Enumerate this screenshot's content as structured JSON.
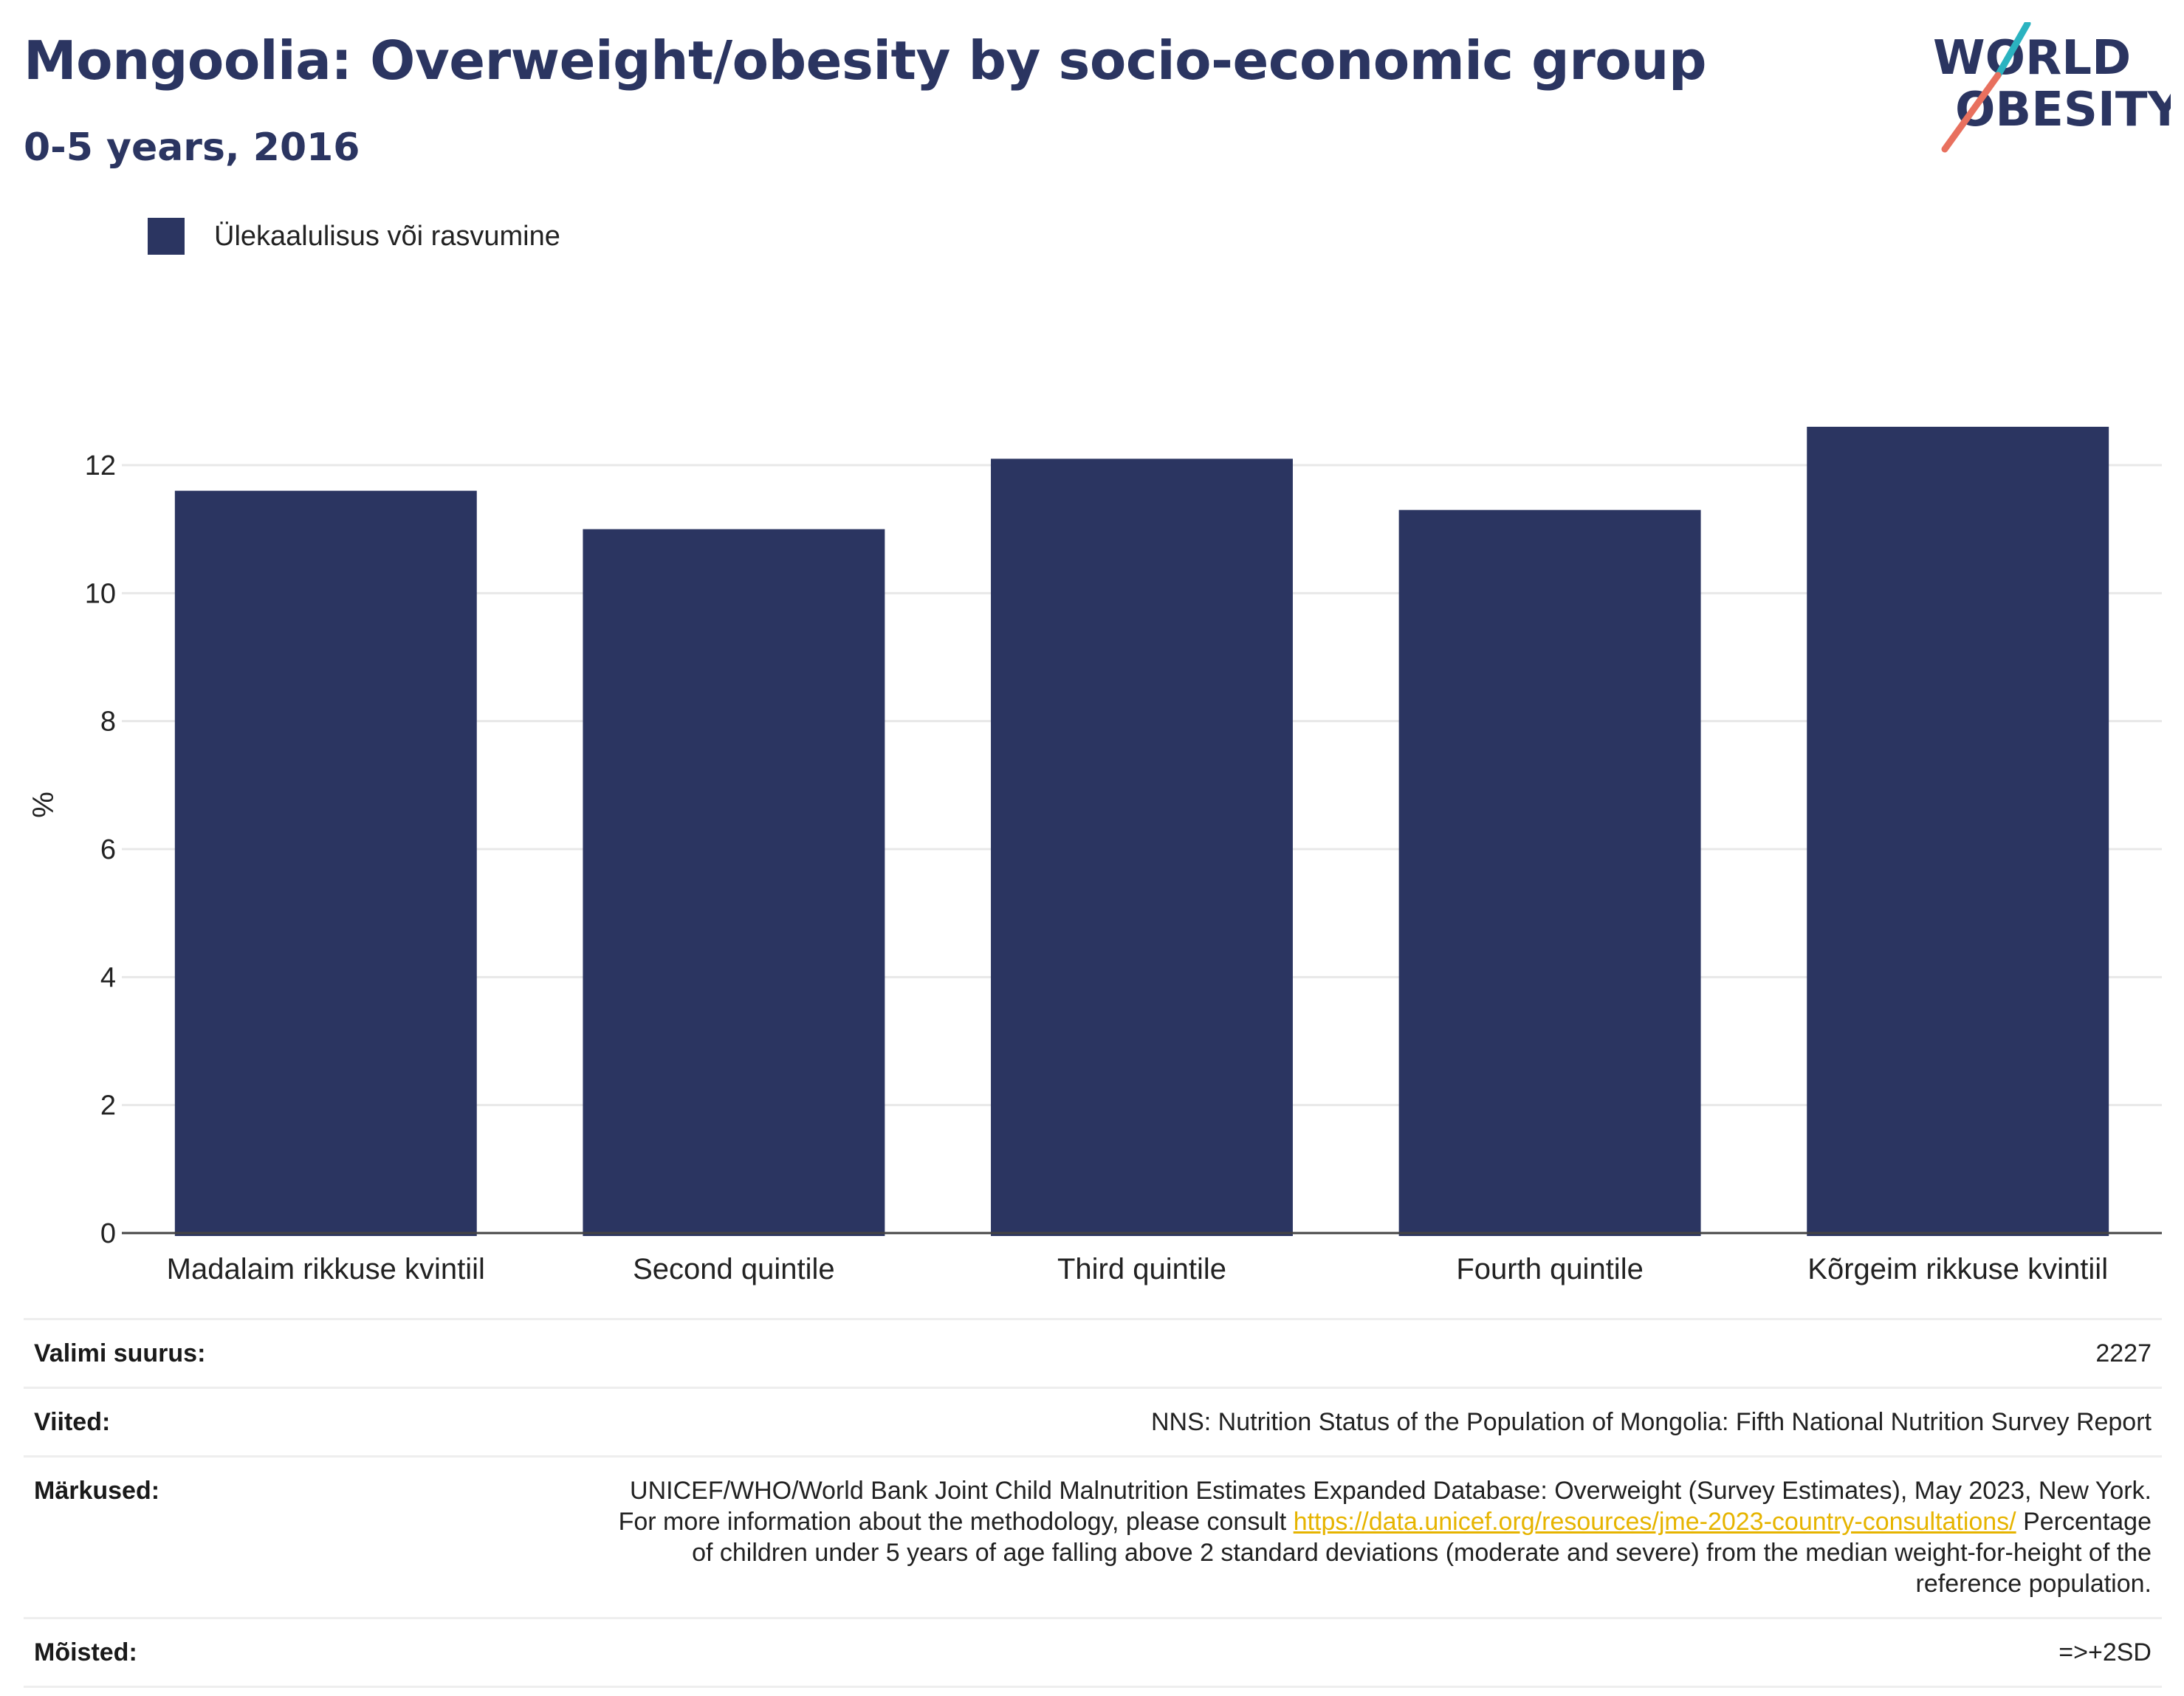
{
  "header": {
    "title": "Mongoolia: Overweight/obesity by socio-economic group",
    "subtitle": "0-5 years, 2016"
  },
  "logo": {
    "line1": "WORLD",
    "line2": "OBESITY"
  },
  "colors": {
    "bar": "#2b3561",
    "accent_teal": "#2bb3c0",
    "accent_coral": "#e8705e",
    "grid": "#e8e8e8",
    "axis": "#444444"
  },
  "chart_data": {
    "type": "bar",
    "categories": [
      "Madalaim rikkuse kvintiil",
      "Second quintile",
      "Third quintile",
      "Fourth quintile",
      "Kõrgeim rikkuse kvintiil"
    ],
    "series": [
      {
        "name": "Ülekaalulisus või rasvumine",
        "values": [
          11.6,
          11.0,
          12.1,
          11.3,
          12.6
        ]
      }
    ],
    "ylabel": "%",
    "xlabel": "",
    "ylim": [
      0,
      13.5
    ],
    "yticks": [
      0,
      2,
      4,
      6,
      8,
      10,
      12
    ],
    "grid": true,
    "legend": "top-left"
  },
  "meta": {
    "sample_label": "Valimi suurus:",
    "sample_value": "2227",
    "refs_label": "Viited:",
    "refs_value": "NNS: Nutrition Status of the Population of Mongolia: Fifth National Nutrition Survey Report",
    "notes_label": "Märkused:",
    "notes_text_1": "UNICEF/WHO/World Bank Joint Child Malnutrition Estimates Expanded Database: Overweight (Survey Estimates), May 2023, New York. For more information about the methodology, please consult ",
    "notes_link": "https://data.unicef.org/resources/jme-2023-country-consultations/",
    "notes_text_2": " Percentage of children under 5 years of age falling above 2 standard deviations (moderate and severe) from the median weight-for-height of the reference population.",
    "defs_label": "Mõisted:",
    "defs_value": "=>+2SD"
  }
}
